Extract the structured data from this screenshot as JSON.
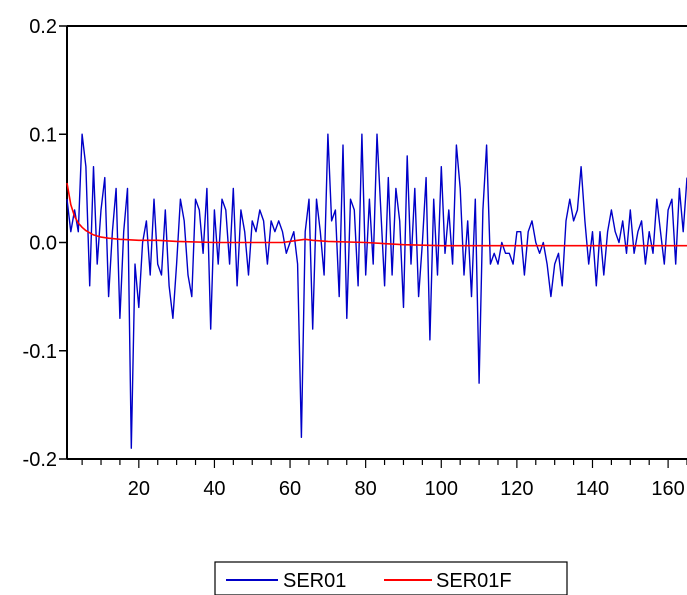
{
  "chart_data": {
    "type": "line",
    "title": "",
    "xlabel": "",
    "ylabel": "",
    "xlim": [
      1,
      165
    ],
    "ylim": [
      -0.2,
      0.2
    ],
    "x_ticks": [
      20,
      40,
      60,
      80,
      100,
      120,
      140,
      160
    ],
    "x_tick_labels": [
      "20",
      "40",
      "60",
      "80",
      "100",
      "120",
      "140",
      "160"
    ],
    "y_ticks": [
      0.2,
      0.1,
      0.0,
      -0.1,
      -0.2
    ],
    "y_tick_labels": [
      "0.2",
      "0.1",
      "0.0",
      "-0.1",
      "-0.2"
    ],
    "grid": false,
    "legend_position": "bottom-center",
    "series": [
      {
        "name": "SER01",
        "color": "#0000c8",
        "x": [
          1,
          2,
          3,
          4,
          5,
          6,
          7,
          8,
          9,
          10,
          11,
          12,
          13,
          14,
          15,
          16,
          17,
          18,
          19,
          20,
          21,
          22,
          23,
          24,
          25,
          26,
          27,
          28,
          29,
          30,
          31,
          32,
          33,
          34,
          35,
          36,
          37,
          38,
          39,
          40,
          41,
          42,
          43,
          44,
          45,
          46,
          47,
          48,
          49,
          50,
          51,
          52,
          53,
          54,
          55,
          56,
          57,
          58,
          59,
          60,
          61,
          62,
          63,
          64,
          65,
          66,
          67,
          68,
          69,
          70,
          71,
          72,
          73,
          74,
          75,
          76,
          77,
          78,
          79,
          80,
          81,
          82,
          83,
          84,
          85,
          86,
          87,
          88,
          89,
          90,
          91,
          92,
          93,
          94,
          95,
          96,
          97,
          98,
          99,
          100,
          101,
          102,
          103,
          104,
          105,
          106,
          107,
          108,
          109,
          110,
          111,
          112,
          113,
          114,
          115,
          116,
          117,
          118,
          119,
          120,
          121,
          122,
          123,
          124,
          125,
          126,
          127,
          128,
          129,
          130,
          131,
          132,
          133,
          134,
          135,
          136,
          137,
          138,
          139,
          140,
          141,
          142,
          143,
          144,
          145,
          146,
          147,
          148,
          149,
          150,
          151,
          152,
          153,
          154,
          155,
          156,
          157,
          158,
          159,
          160,
          161,
          162,
          163,
          164,
          165
        ],
        "y": [
          0.04,
          0.01,
          0.03,
          0.01,
          0.1,
          0.07,
          -0.04,
          0.07,
          -0.02,
          0.03,
          0.06,
          -0.05,
          0.01,
          0.05,
          -0.07,
          0.01,
          0.05,
          -0.19,
          -0.02,
          -0.06,
          0.0,
          0.02,
          -0.03,
          0.04,
          -0.02,
          -0.03,
          0.03,
          -0.04,
          -0.07,
          -0.02,
          0.04,
          0.02,
          -0.03,
          -0.05,
          0.04,
          0.03,
          -0.01,
          0.05,
          -0.08,
          0.03,
          -0.02,
          0.04,
          0.03,
          -0.02,
          0.05,
          -0.04,
          0.03,
          0.01,
          -0.03,
          0.02,
          0.01,
          0.03,
          0.02,
          -0.02,
          0.02,
          0.01,
          0.02,
          0.01,
          -0.01,
          0.0,
          0.01,
          -0.02,
          -0.18,
          0.01,
          0.04,
          -0.08,
          0.04,
          0.01,
          -0.03,
          0.1,
          0.02,
          0.03,
          -0.05,
          0.09,
          -0.07,
          0.04,
          0.03,
          -0.04,
          0.1,
          -0.03,
          0.04,
          -0.02,
          0.1,
          0.03,
          -0.04,
          0.06,
          -0.03,
          0.05,
          0.02,
          -0.06,
          0.08,
          -0.02,
          0.05,
          -0.05,
          0.0,
          0.06,
          -0.09,
          0.04,
          -0.03,
          0.07,
          -0.01,
          0.03,
          -0.02,
          0.09,
          0.05,
          -0.03,
          0.02,
          -0.05,
          0.04,
          -0.13,
          0.03,
          0.09,
          -0.02,
          -0.01,
          -0.02,
          0.0,
          -0.01,
          -0.01,
          -0.02,
          0.01,
          0.01,
          -0.03,
          0.01,
          0.02,
          0.0,
          -0.01,
          0.0,
          -0.02,
          -0.05,
          -0.02,
          -0.01,
          -0.04,
          0.02,
          0.04,
          0.02,
          0.03,
          0.07,
          0.02,
          -0.02,
          0.01,
          -0.04,
          0.01,
          -0.03,
          0.01,
          0.03,
          0.01,
          0.0,
          0.02,
          -0.01,
          0.03,
          -0.01,
          0.01,
          0.02,
          -0.02,
          0.01,
          -0.01,
          0.04,
          0.01,
          -0.02,
          0.03,
          0.04,
          -0.02,
          0.05,
          0.01,
          0.06
        ]
      },
      {
        "name": "SER01F",
        "color": "#ff0000",
        "x": [
          1,
          2,
          3,
          4,
          5,
          6,
          7,
          8,
          10,
          12,
          15,
          20,
          25,
          30,
          40,
          50,
          55,
          58,
          60,
          62,
          64,
          66,
          70,
          80,
          90,
          100,
          110,
          120,
          130,
          140,
          150,
          160,
          165
        ],
        "y": [
          0.055,
          0.035,
          0.024,
          0.018,
          0.014,
          0.011,
          0.009,
          0.007,
          0.005,
          0.004,
          0.003,
          0.002,
          0.002,
          0.001,
          0.0,
          0.0,
          0.0,
          0.0,
          0.001,
          0.002,
          0.003,
          0.002,
          0.001,
          0.0,
          -0.002,
          -0.003,
          -0.003,
          -0.003,
          -0.003,
          -0.003,
          -0.003,
          -0.003,
          -0.003
        ]
      }
    ]
  }
}
